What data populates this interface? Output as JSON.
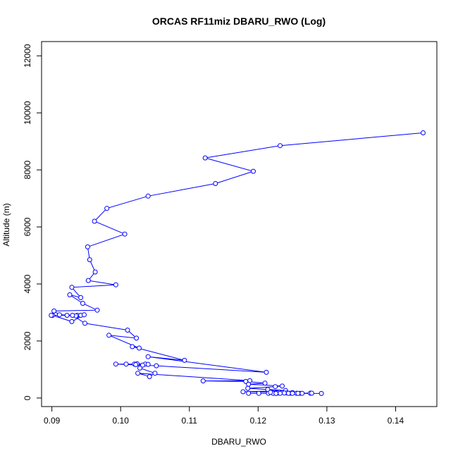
{
  "chart_data": {
    "type": "line",
    "title": "ORCAS RF11miz DBARU_RWO (Log)",
    "xlabel": "DBARU_RWO",
    "ylabel": "Altitude (m)",
    "xlim": [
      0.0885,
      0.146
    ],
    "ylim": [
      -300,
      12500
    ],
    "xticks": [
      0.09,
      0.1,
      0.11,
      0.12,
      0.13,
      0.14
    ],
    "xtick_labels": [
      "0.09",
      "0.10",
      "0.11",
      "0.12",
      "0.13",
      "0.14"
    ],
    "yticks": [
      0,
      2000,
      4000,
      6000,
      8000,
      10000,
      12000
    ],
    "ytick_labels": [
      "0",
      "2000",
      "4000",
      "6000",
      "8000",
      "10000",
      "12000"
    ],
    "series_color": "#0000ff",
    "series": [
      {
        "x": [
          0.144,
          0.1232,
          0.1123,
          0.1193,
          0.1138,
          0.104,
          0.098,
          0.0962,
          0.1006,
          0.0952,
          0.0955,
          0.0963,
          0.0953,
          0.0993,
          0.0929,
          0.0942,
          0.0926,
          0.0945,
          0.0966,
          0.0903,
          0.0911,
          0.0937,
          0.0942,
          0.0922,
          0.0935,
          0.0947,
          0.0929,
          0.0901,
          0.0899,
          0.093,
          0.0948,
          0.101,
          0.1023,
          0.0983,
          0.1027,
          0.1017,
          0.1093,
          0.104,
          0.1212,
          0.1052,
          0.0993,
          0.1008,
          0.102,
          0.1036,
          0.1024,
          0.1022,
          0.104,
          0.1032,
          0.1028,
          0.105,
          0.1042,
          0.1025,
          0.1188,
          0.112,
          0.1182,
          0.121,
          0.1186,
          0.1235,
          0.1225,
          0.1185,
          0.1214,
          0.124,
          0.1178,
          0.123,
          0.122,
          0.125,
          0.1226,
          0.1242,
          0.1229,
          0.1247,
          0.1256,
          0.1186,
          0.1215,
          0.1232,
          0.1244,
          0.1201,
          0.1261,
          0.1222,
          0.1276,
          0.125,
          0.1292,
          0.1226,
          0.1258,
          0.1278,
          0.1238,
          0.1264,
          0.1218
        ],
        "y": [
          9300,
          8850,
          8420,
          7950,
          7520,
          7080,
          6650,
          6200,
          5750,
          5300,
          4850,
          4420,
          4120,
          3970,
          3880,
          3520,
          3620,
          3320,
          3080,
          3050,
          2920,
          2900,
          2900,
          2900,
          2880,
          2920,
          2680,
          2900,
          2900,
          2900,
          2620,
          2380,
          2100,
          2200,
          1750,
          1800,
          1320,
          1450,
          900,
          1130,
          1190,
          1190,
          1190,
          1190,
          1200,
          1170,
          1180,
          1150,
          1050,
          870,
          750,
          870,
          610,
          600,
          580,
          520,
          480,
          420,
          400,
          340,
          300,
          260,
          220,
          210,
          200,
          190,
          185,
          180,
          175,
          170,
          168,
          165,
          165,
          165,
          165,
          165,
          165,
          165,
          170,
          165,
          160,
          160,
          165,
          170,
          175,
          165,
          200
        ]
      }
    ]
  }
}
